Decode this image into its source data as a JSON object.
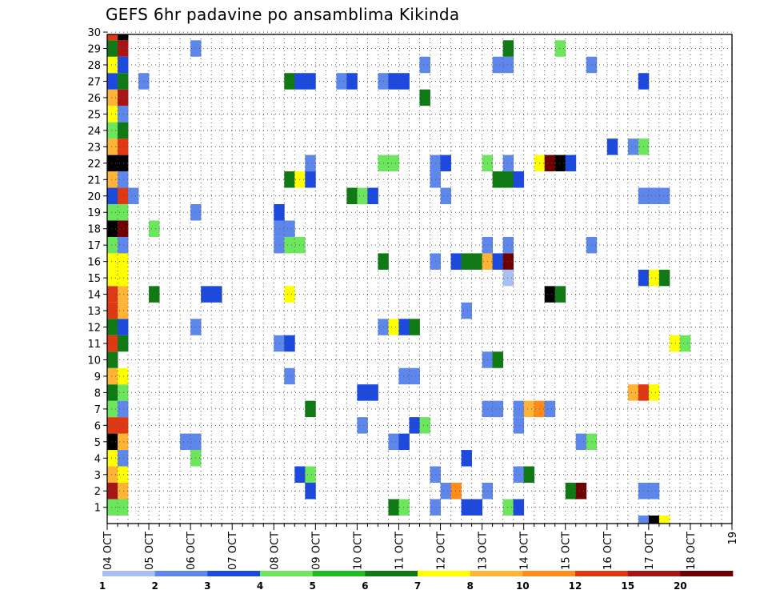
{
  "chart_data": {
    "type": "heatmap",
    "title": "GEFS 6hr padavine po ansamblima Kikinda",
    "x_ticks": [
      "04 OCT",
      "05 OCT",
      "06 OCT",
      "07 OCT",
      "08 OCT",
      "09 OCT",
      "10 OCT",
      "11 OCT",
      "12 OCT",
      "13 OCT",
      "14 OCT",
      "15 OCT",
      "16 OCT",
      "17 OCT",
      "18 OCT",
      "19"
    ],
    "y_ticks": [
      1,
      2,
      3,
      4,
      5,
      6,
      7,
      8,
      9,
      10,
      11,
      12,
      13,
      14,
      15,
      16,
      17,
      18,
      19,
      20,
      21,
      22,
      23,
      24,
      25,
      26,
      27,
      28,
      29,
      30
    ],
    "grid": true,
    "legend": {
      "position": "bottom",
      "labels": [
        "1",
        "2",
        "3",
        "4",
        "5",
        "6",
        "7",
        "8",
        "10",
        "12",
        "15",
        "20"
      ],
      "colors": [
        "#a9c0f5",
        "#5d87eb",
        "#1c49de",
        "#6ce65c",
        "#1fbe1f",
        "#0f7a14",
        "#ffff00",
        "#ffb436",
        "#ff8c1a",
        "#e13814",
        "#a81414",
        "#6e0000"
      ]
    },
    "cells": [
      [
        0,
        1,
        3
      ],
      [
        0,
        2,
        10
      ],
      [
        0,
        3,
        7
      ],
      [
        0,
        4,
        6
      ],
      [
        0,
        5,
        12
      ],
      [
        0,
        6,
        9
      ],
      [
        0,
        7,
        3
      ],
      [
        0,
        8,
        5
      ],
      [
        0,
        9,
        7
      ],
      [
        0,
        10,
        5
      ],
      [
        0,
        11,
        9
      ],
      [
        0,
        12,
        5
      ],
      [
        0,
        13,
        9
      ],
      [
        0,
        14,
        9
      ],
      [
        0,
        15,
        6
      ],
      [
        0,
        16,
        6
      ],
      [
        0,
        17,
        3
      ],
      [
        0,
        18,
        12
      ],
      [
        0,
        19,
        3
      ],
      [
        0,
        20,
        2
      ],
      [
        0,
        21,
        7
      ],
      [
        0,
        22,
        12
      ],
      [
        0,
        23,
        7
      ],
      [
        0,
        24,
        3
      ],
      [
        0,
        25,
        6
      ],
      [
        0,
        26,
        7
      ],
      [
        0,
        27,
        2
      ],
      [
        0,
        28,
        6
      ],
      [
        0,
        29,
        5
      ],
      [
        0,
        30,
        9
      ],
      [
        1,
        1,
        3
      ],
      [
        1,
        2,
        7
      ],
      [
        1,
        3,
        6
      ],
      [
        1,
        4,
        1
      ],
      [
        1,
        5,
        7
      ],
      [
        1,
        6,
        9
      ],
      [
        1,
        7,
        1
      ],
      [
        1,
        8,
        3
      ],
      [
        1,
        9,
        6
      ],
      [
        1,
        11,
        5
      ],
      [
        1,
        12,
        2
      ],
      [
        1,
        13,
        7
      ],
      [
        1,
        14,
        7
      ],
      [
        1,
        15,
        6
      ],
      [
        1,
        16,
        6
      ],
      [
        1,
        17,
        1
      ],
      [
        1,
        18,
        11
      ],
      [
        1,
        19,
        3
      ],
      [
        1,
        20,
        9
      ],
      [
        1,
        21,
        1
      ],
      [
        1,
        22,
        12
      ],
      [
        1,
        23,
        9
      ],
      [
        1,
        24,
        5
      ],
      [
        1,
        25,
        1
      ],
      [
        1,
        26,
        10
      ],
      [
        1,
        27,
        5
      ],
      [
        1,
        28,
        2
      ],
      [
        1,
        29,
        10
      ],
      [
        1,
        30,
        12
      ],
      [
        2,
        20,
        1
      ],
      [
        3,
        27,
        1
      ],
      [
        4,
        14,
        5
      ],
      [
        4,
        18,
        3
      ],
      [
        7,
        5,
        1
      ],
      [
        8,
        5,
        1
      ],
      [
        8,
        4,
        3
      ],
      [
        8,
        29,
        1
      ],
      [
        8,
        19,
        1
      ],
      [
        8,
        12,
        1
      ],
      [
        9,
        14,
        2
      ],
      [
        10,
        14,
        2
      ],
      [
        16,
        17,
        1
      ],
      [
        16,
        18,
        1
      ],
      [
        16,
        19,
        2
      ],
      [
        16,
        11,
        1
      ],
      [
        17,
        11,
        2
      ],
      [
        17,
        18,
        1
      ],
      [
        17,
        27,
        5
      ],
      [
        17,
        21,
        5
      ],
      [
        17,
        14,
        6
      ],
      [
        17,
        9,
        1
      ],
      [
        17,
        17,
        3
      ],
      [
        18,
        17,
        3
      ],
      [
        18,
        27,
        2
      ],
      [
        18,
        21,
        6
      ],
      [
        18,
        3,
        2
      ],
      [
        19,
        3,
        3
      ],
      [
        19,
        2,
        2
      ],
      [
        19,
        7,
        5
      ],
      [
        19,
        21,
        2
      ],
      [
        19,
        27,
        2
      ],
      [
        19,
        22,
        1
      ],
      [
        22,
        27,
        1
      ],
      [
        23,
        27,
        2
      ],
      [
        23,
        20,
        5
      ],
      [
        24,
        20,
        3
      ],
      [
        25,
        20,
        2
      ],
      [
        24,
        8,
        2
      ],
      [
        25,
        8,
        2
      ],
      [
        24,
        6,
        1
      ],
      [
        26,
        22,
        3
      ],
      [
        27,
        22,
        3
      ],
      [
        26,
        27,
        1
      ],
      [
        27,
        27,
        2
      ],
      [
        28,
        27,
        2
      ],
      [
        26,
        16,
        5
      ],
      [
        26,
        12,
        1
      ],
      [
        27,
        12,
        6
      ],
      [
        28,
        12,
        2
      ],
      [
        29,
        12,
        5
      ],
      [
        27,
        1,
        5
      ],
      [
        28,
        1,
        3
      ],
      [
        27,
        5,
        1
      ],
      [
        28,
        5,
        2
      ],
      [
        28,
        9,
        1
      ],
      [
        29,
        9,
        1
      ],
      [
        29,
        6,
        2
      ],
      [
        30,
        6,
        3
      ],
      [
        30,
        26,
        5
      ],
      [
        30,
        28,
        1
      ],
      [
        31,
        1,
        1
      ],
      [
        31,
        16,
        1
      ],
      [
        31,
        3,
        1
      ],
      [
        31,
        22,
        1
      ],
      [
        31,
        21,
        1
      ],
      [
        32,
        22,
        2
      ],
      [
        32,
        2,
        1
      ],
      [
        32,
        20,
        1
      ],
      [
        33,
        16,
        2
      ],
      [
        33,
        2,
        8
      ],
      [
        34,
        16,
        5
      ],
      [
        34,
        13,
        1
      ],
      [
        34,
        4,
        2
      ],
      [
        34,
        1,
        2
      ],
      [
        35,
        1,
        2
      ],
      [
        35,
        16,
        5
      ],
      [
        36,
        16,
        7
      ],
      [
        36,
        22,
        3
      ],
      [
        36,
        10,
        1
      ],
      [
        36,
        17,
        1
      ],
      [
        36,
        7,
        1
      ],
      [
        37,
        7,
        1
      ],
      [
        36,
        2,
        1
      ],
      [
        37,
        10,
        5
      ],
      [
        37,
        21,
        5
      ],
      [
        38,
        21,
        5
      ],
      [
        37,
        28,
        1
      ],
      [
        38,
        28,
        1
      ],
      [
        37,
        16,
        2
      ],
      [
        38,
        16,
        11
      ],
      [
        38,
        15,
        0
      ],
      [
        38,
        29,
        5
      ],
      [
        38,
        1,
        3
      ],
      [
        39,
        1,
        2
      ],
      [
        38,
        17,
        1
      ],
      [
        38,
        22,
        1
      ],
      [
        39,
        21,
        2
      ],
      [
        39,
        7,
        1
      ],
      [
        39,
        3,
        1
      ],
      [
        39,
        6,
        1
      ],
      [
        40,
        3,
        5
      ],
      [
        40,
        7,
        7
      ],
      [
        41,
        7,
        8
      ],
      [
        42,
        7,
        1
      ],
      [
        41,
        22,
        6
      ],
      [
        42,
        22,
        11
      ],
      [
        43,
        22,
        12
      ],
      [
        44,
        22,
        2
      ],
      [
        42,
        14,
        12
      ],
      [
        43,
        14,
        5
      ],
      [
        43,
        29,
        3
      ],
      [
        44,
        2,
        5
      ],
      [
        45,
        2,
        11
      ],
      [
        45,
        5,
        1
      ],
      [
        46,
        5,
        3
      ],
      [
        46,
        17,
        1
      ],
      [
        46,
        28,
        1
      ],
      [
        48,
        23,
        2
      ],
      [
        50,
        23,
        1
      ],
      [
        51,
        23,
        3
      ],
      [
        50,
        8,
        7
      ],
      [
        51,
        8,
        9
      ],
      [
        52,
        8,
        6
      ],
      [
        51,
        20,
        1
      ],
      [
        52,
        20,
        1
      ],
      [
        53,
        20,
        1
      ],
      [
        51,
        2,
        1
      ],
      [
        52,
        2,
        1
      ],
      [
        51,
        15,
        2
      ],
      [
        52,
        15,
        6
      ],
      [
        53,
        15,
        5
      ],
      [
        51,
        27,
        2
      ],
      [
        51,
        0,
        1
      ],
      [
        52,
        0,
        12
      ],
      [
        53,
        0,
        6
      ],
      [
        54,
        11,
        6
      ],
      [
        55,
        11,
        3
      ]
    ]
  }
}
